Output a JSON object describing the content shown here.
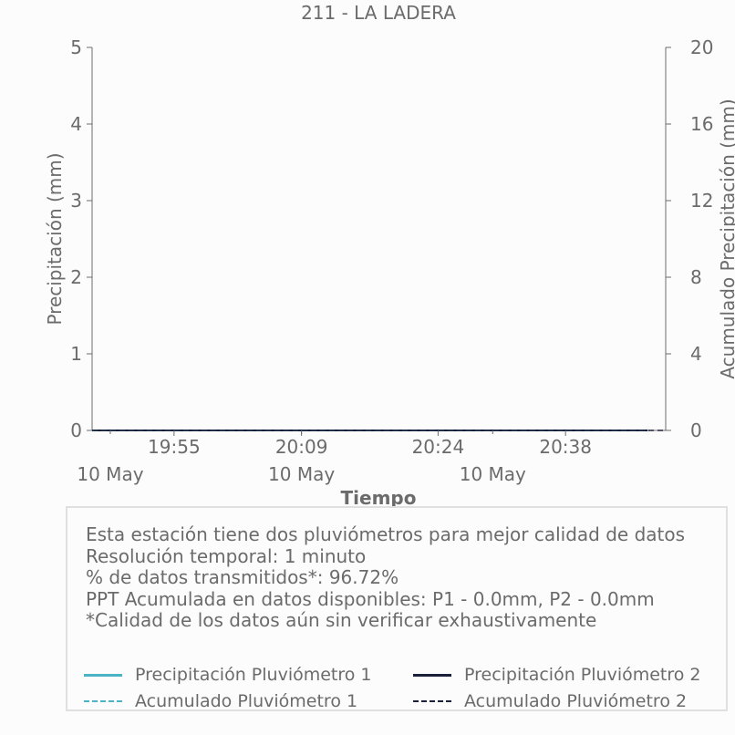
{
  "chart_data": {
    "type": "line",
    "title": "211 - LA LADERA",
    "xlabel": "Tiempo",
    "ylabel": "Precipitación (mm)",
    "y2label": "Acumulado Precipitación (mm)",
    "ylim": [
      0,
      5
    ],
    "y2lim": [
      0,
      20
    ],
    "yticks": [
      "0",
      "1",
      "2",
      "3",
      "4",
      "5"
    ],
    "y2ticks": [
      "0",
      "4",
      "8",
      "12",
      "16",
      "20"
    ],
    "xlim": [
      "2024-05-10 19:46",
      "2024-05-10 20:49"
    ],
    "xticks": [
      {
        "t": "19:55",
        "date": "10 May"
      },
      {
        "t": "20:09",
        "date": ""
      },
      {
        "t": "20:24",
        "date": ""
      },
      {
        "t": "20:38",
        "date": ""
      }
    ],
    "xdate_labels": [
      {
        "t": "19:48",
        "label": "10 May"
      },
      {
        "t": "20:09",
        "label": "10 May"
      },
      {
        "t": "20:30",
        "label": "10 May"
      }
    ],
    "series": [
      {
        "name": "Precipitación Pluviómetro 1",
        "color": "#4ab3c4",
        "style": "solid",
        "x": [
          "19:46",
          "20:47"
        ],
        "values": [
          0,
          0
        ]
      },
      {
        "name": "Precipitación Pluviómetro 2",
        "color": "#1a1f3a",
        "style": "solid",
        "x": [
          "19:46",
          "20:47"
        ],
        "values": [
          0,
          0
        ]
      },
      {
        "name": "Acumulado Pluviómetro 1",
        "color": "#4ab3c4",
        "style": "dashed",
        "x": [
          "19:46",
          "20:47"
        ],
        "values": [
          0,
          0
        ]
      },
      {
        "name": "Acumulado Pluviómetro 2",
        "color": "#1a1f3a",
        "style": "dashed",
        "x": [
          "19:46",
          "20:49"
        ],
        "values": [
          0,
          0
        ]
      }
    ],
    "grid": false,
    "legend_position": "bottom"
  },
  "info": {
    "lines": [
      "Esta estación tiene dos pluviómetros para mejor calidad de datos",
      "Resolución temporal: 1 minuto",
      "% de datos transmitidos*: 96.72%",
      "PPT Acumulada en datos disponibles: P1 - 0.0mm, P2 - 0.0mm",
      "*Calidad de los datos aún sin verificar exhaustivamente"
    ]
  }
}
